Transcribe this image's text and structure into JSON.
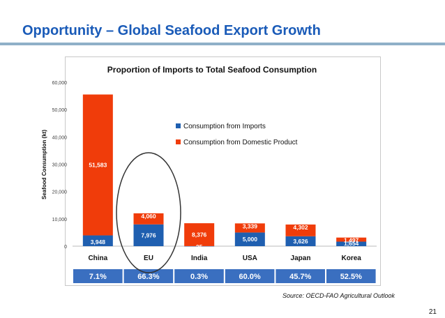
{
  "slide": {
    "title": "Opportunity – Global Seafood Export Growth",
    "source": "Source: OECD-FAO Agricultural Outlook",
    "page_number": "21"
  },
  "colors": {
    "title": "#1a5bb8",
    "imports": "#1f5fb0",
    "domestic": "#f03c0a",
    "percent_bar": "#3a6fc0",
    "circle": "#333333"
  },
  "chart_data": {
    "type": "bar",
    "stacked": true,
    "title": "Proportion of Imports to Total Seafood Consumption",
    "ylabel": "Seafood Consumption (kt)",
    "xlabel": "",
    "ylim": [
      0,
      60000
    ],
    "yticks": [
      "0",
      "10,000",
      "20,000",
      "30,000",
      "40,000",
      "50,000",
      "60,000"
    ],
    "categories": [
      "China",
      "EU",
      "India",
      "USA",
      "Japan",
      "Korea"
    ],
    "series": [
      {
        "name": "Consumption from Imports",
        "values": [
          3948,
          7976,
          25,
          5000,
          3626,
          1654
        ],
        "labels": [
          "3,948",
          "7,976",
          "25",
          "5,000",
          "3,626",
          "1,654"
        ]
      },
      {
        "name": "Consumption from Domestic Product",
        "values": [
          51583,
          4060,
          8376,
          3339,
          4302,
          1497
        ],
        "labels": [
          "51,583",
          "4,060",
          "8,376",
          "3,339",
          "4,302",
          "1,497"
        ]
      }
    ],
    "legend_position": "center-right",
    "import_share": [
      "7.1%",
      "66.3%",
      "0.3%",
      "60.0%",
      "45.7%",
      "52.5%"
    ],
    "highlight": "EU"
  }
}
